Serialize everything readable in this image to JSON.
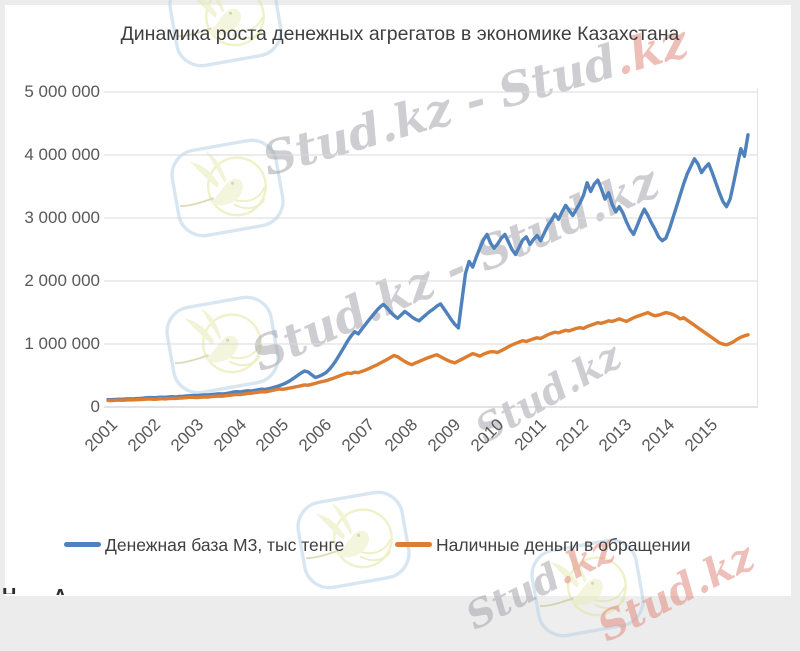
{
  "title": "Динамика роста денежных агрегатов в экономике Казахстана",
  "y_axis": {
    "tick_labels": [
      "5 000 000",
      "4 000 000",
      "3 000 000",
      "2 000 000",
      "1 000 000",
      "0"
    ]
  },
  "x_axis": {
    "tick_labels": [
      "2001",
      "2002",
      "2003",
      "2004",
      "2005",
      "2006",
      "2007",
      "2008",
      "2009",
      "2010",
      "2011",
      "2012",
      "2013",
      "2014",
      "2015"
    ]
  },
  "legend": [
    {
      "label": "Денежная база М3, тыс тенге",
      "color": "#4f81bd"
    },
    {
      "label": "Наличные деньги в обращении",
      "color": "#dd7d31"
    }
  ],
  "watermarks": {
    "top_diagonal_gray": "Stud.kz - Stud",
    "top_diagonal_pink": ".kz",
    "mid_diagonal": "Stud.kz - Stud.kz",
    "plot_diagonal": "Stud.kz",
    "bottom_diagonal_gray": "Stud",
    "bottom_diagonal_pink": ".kz",
    "corner_diagonal": "Stud.kz",
    "gray_color": "#9e9ea6",
    "pink_color": "#e29488"
  },
  "clipped_bottom_fragments": [
    "Н",
    "А"
  ],
  "chart_data": {
    "type": "line",
    "title": "Динамика роста денежных агрегатов в экономике Казахстана",
    "xlabel": "",
    "ylabel": "",
    "x_start_year": 2001,
    "points_per_year": 12,
    "x_tick_labels": [
      "2001",
      "2002",
      "2003",
      "2004",
      "2005",
      "2006",
      "2007",
      "2008",
      "2009",
      "2010",
      "2011",
      "2012",
      "2013",
      "2014",
      "2015"
    ],
    "ylim": [
      0,
      5000000
    ],
    "y_tick_interval": 1000000,
    "grid": true,
    "legend_position": "bottom",
    "series": [
      {
        "name": "Денежная база М3, тыс тенге",
        "color": "#4f81bd",
        "values": [
          118000,
          116000,
          121000,
          124000,
          122000,
          127000,
          130000,
          128000,
          133000,
          137000,
          141000,
          147000,
          150000,
          147000,
          152000,
          156000,
          154000,
          159000,
          163000,
          161000,
          166000,
          170000,
          174000,
          180000,
          184000,
          181000,
          187000,
          192000,
          190000,
          197000,
          203000,
          209000,
          206000,
          215000,
          224000,
          236000,
          243000,
          240000,
          249000,
          257000,
          254000,
          264000,
          273000,
          282000,
          279000,
          292000,
          305000,
          322000,
          340000,
          362000,
          388000,
          420000,
          458000,
          500000,
          540000,
          572000,
          556000,
          510000,
          468000,
          486000,
          512000,
          548000,
          604000,
          676000,
          758000,
          852000,
          948000,
          1048000,
          1128000,
          1196000,
          1160000,
          1238000,
          1308000,
          1382000,
          1452000,
          1522000,
          1582000,
          1628000,
          1576000,
          1506000,
          1452000,
          1408000,
          1462000,
          1516000,
          1476000,
          1428000,
          1392000,
          1368000,
          1418000,
          1468000,
          1516000,
          1556000,
          1602000,
          1636000,
          1556000,
          1472000,
          1388000,
          1312000,
          1256000,
          1700000,
          2120000,
          2310000,
          2220000,
          2380000,
          2520000,
          2650000,
          2740000,
          2600000,
          2520000,
          2590000,
          2680000,
          2740000,
          2620000,
          2500000,
          2420000,
          2540000,
          2650000,
          2700000,
          2580000,
          2660000,
          2720000,
          2640000,
          2760000,
          2880000,
          2960000,
          3060000,
          2980000,
          3100000,
          3200000,
          3120000,
          3040000,
          3140000,
          3240000,
          3360000,
          3560000,
          3420000,
          3540000,
          3600000,
          3460000,
          3300000,
          3400000,
          3220000,
          3100000,
          3180000,
          3080000,
          2940000,
          2820000,
          2740000,
          2880000,
          3020000,
          3140000,
          3040000,
          2920000,
          2820000,
          2700000,
          2640000,
          2680000,
          2820000,
          3000000,
          3180000,
          3360000,
          3540000,
          3700000,
          3820000,
          3940000,
          3860000,
          3720000,
          3800000,
          3860000,
          3720000,
          3560000,
          3400000,
          3260000,
          3180000,
          3300000,
          3560000,
          3840000,
          4100000,
          3980000,
          4320000
        ]
      },
      {
        "name": "Наличные деньги в обращении",
        "color": "#dd7d31",
        "values": [
          104000,
          102000,
          106000,
          109000,
          107000,
          111000,
          114000,
          112000,
          116000,
          119000,
          122000,
          127000,
          125000,
          122000,
          127000,
          131000,
          129000,
          134000,
          138000,
          136000,
          141000,
          145000,
          149000,
          155000,
          153000,
          150000,
          156000,
          161000,
          159000,
          165000,
          170000,
          175000,
          172000,
          179000,
          186000,
          194000,
          200000,
          197000,
          205000,
          212000,
          219000,
          227000,
          235000,
          243000,
          240000,
          251000,
          262000,
          276000,
          285000,
          281000,
          292000,
          303000,
          314000,
          326000,
          338000,
          350000,
          346000,
          360000,
          374000,
          392000,
          404000,
          418000,
          436000,
          456000,
          478000,
          500000,
          520000,
          540000,
          532000,
          552000,
          544000,
          566000,
          586000,
          610000,
          638000,
          664000,
          692000,
          722000,
          752000,
          786000,
          818000,
          798000,
          758000,
          722000,
          692000,
          672000,
          700000,
          722000,
          748000,
          772000,
          792000,
          812000,
          828000,
          800000,
          768000,
          740000,
          718000,
          700000,
          730000,
          758000,
          788000,
          818000,
          848000,
          828000,
          808000,
          838000,
          858000,
          878000,
          876000,
          866000,
          896000,
          926000,
          956000,
          986000,
          1010000,
          1032000,
          1052000,
          1040000,
          1062000,
          1082000,
          1098000,
          1088000,
          1118000,
          1148000,
          1168000,
          1188000,
          1178000,
          1198000,
          1218000,
          1208000,
          1228000,
          1248000,
          1258000,
          1248000,
          1278000,
          1298000,
          1318000,
          1338000,
          1328000,
          1348000,
          1368000,
          1358000,
          1378000,
          1398000,
          1378000,
          1358000,
          1388000,
          1418000,
          1438000,
          1458000,
          1478000,
          1498000,
          1468000,
          1448000,
          1458000,
          1478000,
          1498000,
          1488000,
          1468000,
          1438000,
          1398000,
          1418000,
          1378000,
          1338000,
          1298000,
          1258000,
          1218000,
          1178000,
          1138000,
          1098000,
          1058000,
          1018000,
          998000,
          988000,
          1008000,
          1038000,
          1078000,
          1108000,
          1128000,
          1148000
        ]
      }
    ]
  }
}
